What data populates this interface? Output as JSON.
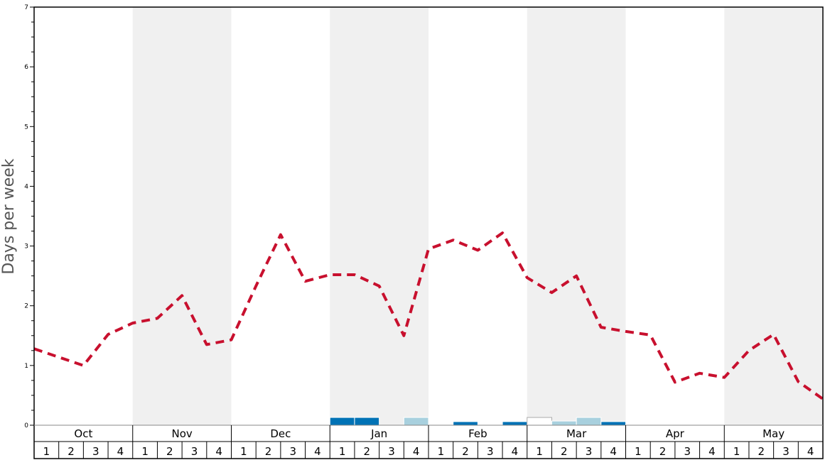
{
  "chart_data": {
    "type": "line",
    "ylabel": "Days per week",
    "ylim": [
      0,
      7
    ],
    "y_ticks": [
      "0",
      "1",
      "2",
      "3",
      "4",
      "5",
      "6",
      "7"
    ],
    "months": [
      "Oct",
      "Nov",
      "Dec",
      "Jan",
      "Feb",
      "Mar",
      "Apr",
      "May"
    ],
    "week_labels": [
      "1",
      "2",
      "3",
      "4"
    ],
    "shaded_months": [
      "Nov",
      "Jan",
      "Mar",
      "May"
    ],
    "colors": {
      "line": "#c8102e",
      "shade": "#f0f0f0",
      "bar_dark": "#0072b5",
      "bar_light": "#a8d0de",
      "bar_white": "#ffffff",
      "bar_stroke": "#aaaaaa"
    },
    "series": [
      {
        "style": "dashed",
        "values": [
          1.28,
          1.14,
          1.0,
          1.52,
          1.71,
          1.79,
          2.17,
          1.35,
          1.43,
          2.33,
          3.19,
          2.41,
          2.52,
          2.52,
          2.33,
          1.5,
          2.95,
          3.1,
          2.93,
          3.22,
          2.47,
          2.22,
          2.5,
          1.64,
          1.57,
          1.51,
          0.72,
          0.87,
          0.8,
          1.25,
          1.52,
          0.73,
          0.44
        ]
      }
    ],
    "bars": [
      {
        "month": "Jan",
        "week": 1,
        "value": 0.13,
        "color": "dark"
      },
      {
        "month": "Jan",
        "week": 2,
        "value": 0.13,
        "color": "dark"
      },
      {
        "month": "Jan",
        "week": 4,
        "value": 0.13,
        "color": "light"
      },
      {
        "month": "Feb",
        "week": 2,
        "value": 0.06,
        "color": "dark"
      },
      {
        "month": "Feb",
        "week": 4,
        "value": 0.06,
        "color": "dark"
      },
      {
        "month": "Mar",
        "week": 1,
        "value": 0.13,
        "color": "white"
      },
      {
        "month": "Mar",
        "week": 2,
        "value": 0.07,
        "color": "light"
      },
      {
        "month": "Mar",
        "week": 3,
        "value": 0.13,
        "color": "light"
      },
      {
        "month": "Mar",
        "week": 4,
        "value": 0.06,
        "color": "dark"
      }
    ]
  }
}
